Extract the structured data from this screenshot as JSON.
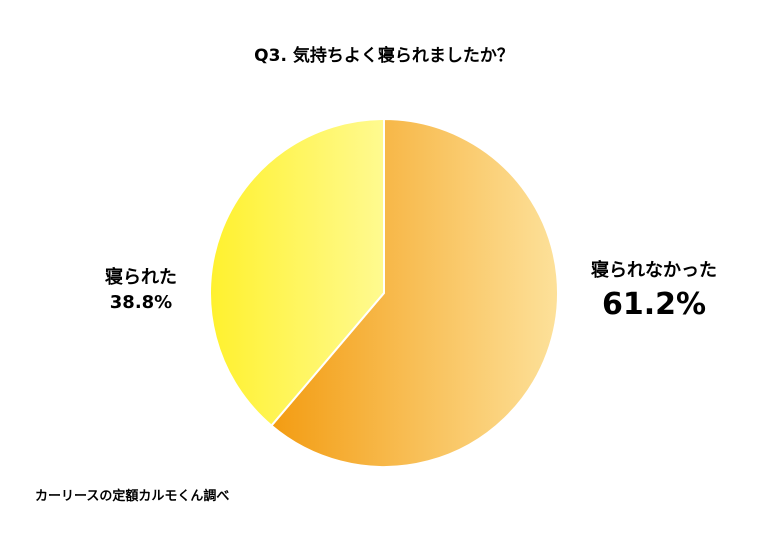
{
  "chart_data": {
    "type": "pie",
    "title": "Q3. 気持ちよく寝られましたか？",
    "slices": [
      {
        "label": "寝られなかった",
        "value": 61.2,
        "value_label": "61.2%",
        "color_start": "#f39c12",
        "color_end": "#fde19a"
      },
      {
        "label": "寝られた",
        "value": 38.8,
        "value_label": "38.8%",
        "color_start": "#fff12e",
        "color_end": "#fffa90"
      }
    ],
    "source": "カーリースの定額カルモくん調べ"
  }
}
